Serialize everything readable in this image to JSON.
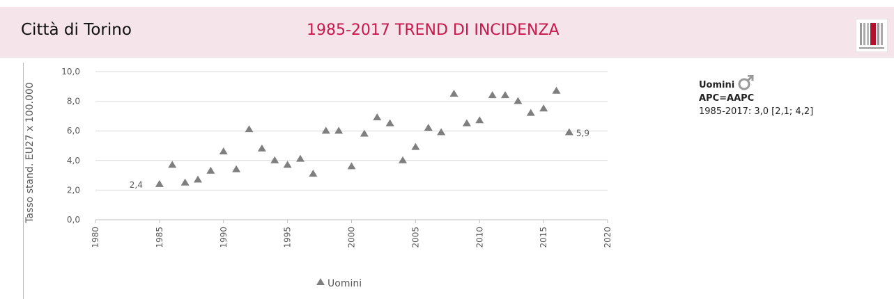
{
  "header": {
    "title": "Città di Torino",
    "subtitle": "1985-2017 TREND DI INCIDENZA"
  },
  "info": {
    "group": "Uomini",
    "model": "APC=AAPC",
    "estimate": "1985-2017: 3,0 [2,1; 4,2]"
  },
  "chart_data": {
    "type": "scatter",
    "y_label": "Tasso stand. EU27 x 100.000",
    "x": [
      1985,
      1986,
      1987,
      1988,
      1989,
      1990,
      1991,
      1992,
      1993,
      1994,
      1995,
      1996,
      1997,
      1998,
      1999,
      2000,
      2001,
      2002,
      2003,
      2004,
      2005,
      2006,
      2007,
      2008,
      2009,
      2010,
      2011,
      2012,
      2013,
      2014,
      2015,
      2016,
      2017
    ],
    "series": [
      {
        "name": "Uomini",
        "color": "#7f7f7f",
        "values": [
          2.4,
          3.7,
          2.5,
          2.7,
          3.3,
          4.6,
          3.4,
          6.1,
          4.8,
          4.0,
          3.7,
          4.1,
          3.1,
          6.0,
          6.0,
          3.6,
          5.8,
          6.9,
          6.5,
          4.0,
          4.9,
          6.2,
          5.9,
          8.5,
          6.5,
          6.7,
          8.4,
          8.4,
          8.0,
          7.2,
          7.5,
          8.7,
          5.9
        ],
        "value_labels": [
          "2,4",
          null,
          null,
          null,
          null,
          null,
          null,
          null,
          null,
          null,
          null,
          null,
          null,
          null,
          null,
          null,
          null,
          null,
          null,
          null,
          null,
          null,
          null,
          null,
          null,
          null,
          null,
          null,
          null,
          null,
          null,
          null,
          "5,9"
        ]
      }
    ],
    "xlim": [
      1980,
      2020
    ],
    "xticks": [
      1980,
      1985,
      1990,
      1995,
      2000,
      2005,
      2010,
      2015,
      2020
    ],
    "ylim": [
      0,
      10
    ],
    "yticks": [
      {
        "value": 0,
        "label": "0,0"
      },
      {
        "value": 2,
        "label": "2,0"
      },
      {
        "value": 4,
        "label": "4,0"
      },
      {
        "value": 6,
        "label": "6,0"
      },
      {
        "value": 8,
        "label": "8,0"
      },
      {
        "value": 10,
        "label": "10,0"
      }
    ],
    "grid": true,
    "legend": "bottom"
  }
}
